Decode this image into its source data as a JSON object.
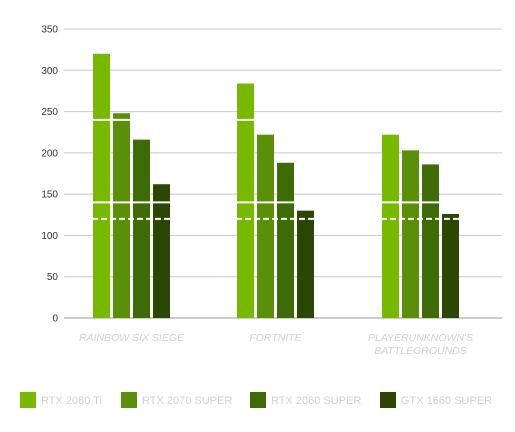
{
  "chart_data": {
    "type": "bar",
    "categories": [
      "RAINBOW SIX SIEGE",
      "FORTNITE",
      "PLAYERUNKNOWN'S BATTLEGROUNDS"
    ],
    "category_lines": [
      [
        "RAINBOW SIX SIEGE"
      ],
      [
        "FORTNITE"
      ],
      [
        "PLAYERUNKNOWN'S",
        "BATTLEGROUNDS"
      ]
    ],
    "series": [
      {
        "name": "RTX 2080 Ti",
        "color": "#76b900",
        "values": [
          320,
          284,
          222
        ]
      },
      {
        "name": "RTX 2070 SUPER",
        "color": "#5a8f0a",
        "values": [
          248,
          222,
          203
        ]
      },
      {
        "name": "RTX 2060 SUPER",
        "color": "#3f6b06",
        "values": [
          216,
          188,
          186
        ]
      },
      {
        "name": "GTX 1660 SUPER",
        "color": "#2a4804",
        "values": [
          162,
          130,
          126
        ]
      }
    ],
    "reference_lines": [
      {
        "value": 240,
        "style": "solid"
      },
      {
        "value": 140,
        "style": "solid"
      },
      {
        "value": 120,
        "style": "dashed"
      }
    ],
    "yticks": [
      0,
      50,
      100,
      150,
      200,
      250,
      300,
      350
    ],
    "ylim": [
      0,
      350
    ],
    "grid": true,
    "legend_position": "bottom",
    "title": "",
    "xlabel": "",
    "ylabel": ""
  }
}
